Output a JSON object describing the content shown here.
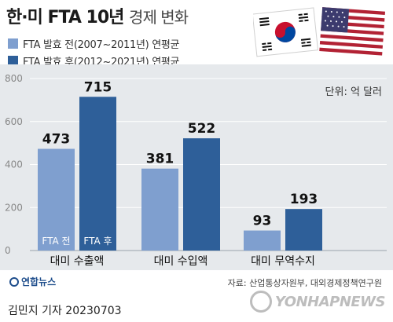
{
  "header": {
    "title_main": "한·미 FTA 10년",
    "title_sub": "경제 변화"
  },
  "legend": [
    {
      "label": "FTA 발효 전(2007~2011년) 연평균",
      "color": "#7f9fcf"
    },
    {
      "label": "FTA 발효 후(2012~2021년) 연평균",
      "color": "#2e5f99"
    }
  ],
  "unit_label": "단위: 억 달러",
  "chart_data": {
    "type": "bar",
    "categories": [
      "대미 수출액",
      "대미 수입액",
      "대미 무역수지"
    ],
    "series": [
      {
        "name": "FTA 전",
        "values": [
          473,
          381,
          93
        ],
        "color": "#7f9fcf"
      },
      {
        "name": "FTA 후",
        "values": [
          715,
          522,
          193
        ],
        "color": "#2e5f99"
      }
    ],
    "ylim": [
      0,
      800
    ],
    "yticks": [
      0,
      200,
      400,
      600,
      800
    ],
    "data_labels": [
      "473",
      "381",
      "93",
      "715",
      "522",
      "193"
    ],
    "bar_inner_labels": [
      "FTA 전",
      "FTA 후"
    ]
  },
  "footer": {
    "source": "자료: 산업통상자원부, 대외경제정책연구원",
    "logo_text": "연합뉴스",
    "author": "김민지 기자  20230703",
    "watermark": "YONHAPNEWS"
  }
}
